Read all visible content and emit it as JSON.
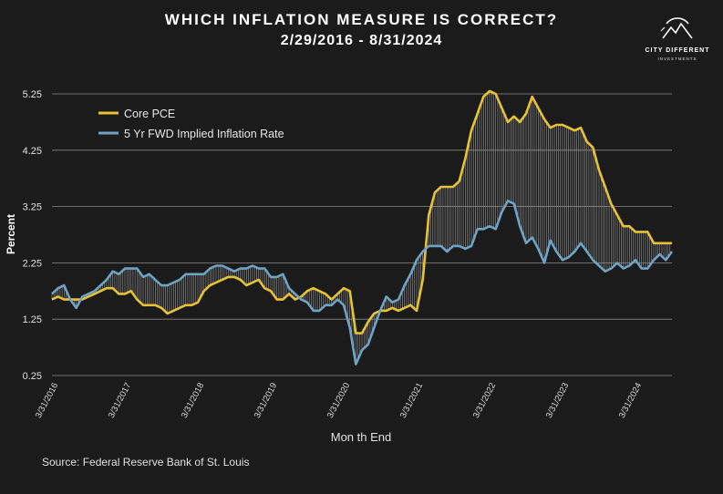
{
  "header": {
    "title": "WHICH INFLATION MEASURE IS CORRECT?",
    "subtitle": "2/29/2016 - 8/31/2024"
  },
  "logo": {
    "name": "CITY DIFFERENT",
    "tagline": "INVESTMENTS",
    "icon": "mountain-circle-logo"
  },
  "source": "Source: Federal Reserve Bank of St. Louis",
  "colors": {
    "core_pce": "#e8c232",
    "fwd": "#6fa3c6",
    "background": "#1b1b1b",
    "grid": "#8a8a8a",
    "hatch": "#9a9a9a"
  },
  "chart_data": {
    "type": "line",
    "title": "WHICH INFLATION MEASURE IS CORRECT?",
    "subtitle": "2/29/2016 - 8/31/2024",
    "xlabel": "Mon th End",
    "ylabel": "Percent",
    "ylim": [
      0.25,
      5.5
    ],
    "yticks": [
      0.25,
      1.25,
      2.25,
      3.25,
      4.25,
      5.25
    ],
    "ytick_labels": [
      "0.25",
      "1.25",
      "2.25",
      "3.25",
      "4.25",
      "5.25"
    ],
    "grid": true,
    "legend_position": "top-left",
    "x_start": "2/29/2016",
    "x_end": "8/31/2024",
    "xlim_months": [
      0,
      102
    ],
    "xticks_months": [
      1,
      13,
      25,
      37,
      49,
      61,
      73,
      85,
      97
    ],
    "xtick_labels": [
      "3/31/2016",
      "3/31/2017",
      "3/31/2018",
      "3/31/2019",
      "3/31/2020",
      "3/31/2021",
      "3/31/2022",
      "3/31/2023",
      "3/31/2024"
    ],
    "series": [
      {
        "name": "Core PCE",
        "color": "#e8c232",
        "points": [
          [
            0,
            1.6
          ],
          [
            1,
            1.65
          ],
          [
            2,
            1.6
          ],
          [
            3,
            1.6
          ],
          [
            4,
            1.6
          ],
          [
            5,
            1.6
          ],
          [
            6,
            1.65
          ],
          [
            7,
            1.7
          ],
          [
            8,
            1.75
          ],
          [
            9,
            1.8
          ],
          [
            10,
            1.8
          ],
          [
            11,
            1.7
          ],
          [
            12,
            1.7
          ],
          [
            13,
            1.75
          ],
          [
            14,
            1.6
          ],
          [
            15,
            1.5
          ],
          [
            16,
            1.5
          ],
          [
            17,
            1.5
          ],
          [
            18,
            1.45
          ],
          [
            19,
            1.35
          ],
          [
            20,
            1.4
          ],
          [
            21,
            1.45
          ],
          [
            22,
            1.5
          ],
          [
            23,
            1.5
          ],
          [
            24,
            1.55
          ],
          [
            25,
            1.75
          ],
          [
            26,
            1.85
          ],
          [
            27,
            1.9
          ],
          [
            28,
            1.95
          ],
          [
            29,
            2.0
          ],
          [
            30,
            2.0
          ],
          [
            31,
            1.95
          ],
          [
            32,
            1.85
          ],
          [
            33,
            1.9
          ],
          [
            34,
            1.95
          ],
          [
            35,
            1.8
          ],
          [
            36,
            1.75
          ],
          [
            37,
            1.6
          ],
          [
            38,
            1.6
          ],
          [
            39,
            1.7
          ],
          [
            40,
            1.6
          ],
          [
            41,
            1.65
          ],
          [
            42,
            1.75
          ],
          [
            43,
            1.8
          ],
          [
            44,
            1.75
          ],
          [
            45,
            1.7
          ],
          [
            46,
            1.6
          ],
          [
            47,
            1.7
          ],
          [
            48,
            1.8
          ],
          [
            49,
            1.75
          ],
          [
            50,
            1.0
          ],
          [
            51,
            1.0
          ],
          [
            52,
            1.2
          ],
          [
            53,
            1.35
          ],
          [
            54,
            1.4
          ],
          [
            55,
            1.4
          ],
          [
            56,
            1.45
          ],
          [
            57,
            1.4
          ],
          [
            58,
            1.45
          ],
          [
            59,
            1.5
          ],
          [
            60,
            1.4
          ],
          [
            61,
            1.95
          ],
          [
            62,
            3.1
          ],
          [
            63,
            3.5
          ],
          [
            64,
            3.6
          ],
          [
            65,
            3.6
          ],
          [
            66,
            3.6
          ],
          [
            67,
            3.7
          ],
          [
            68,
            4.1
          ],
          [
            69,
            4.6
          ],
          [
            70,
            4.9
          ],
          [
            71,
            5.2
          ],
          [
            72,
            5.3
          ],
          [
            73,
            5.25
          ],
          [
            74,
            5.0
          ],
          [
            75,
            4.75
          ],
          [
            76,
            4.85
          ],
          [
            77,
            4.75
          ],
          [
            78,
            4.9
          ],
          [
            79,
            5.2
          ],
          [
            80,
            5.0
          ],
          [
            81,
            4.8
          ],
          [
            82,
            4.65
          ],
          [
            83,
            4.7
          ],
          [
            84,
            4.7
          ],
          [
            85,
            4.65
          ],
          [
            86,
            4.6
          ],
          [
            87,
            4.65
          ],
          [
            88,
            4.4
          ],
          [
            89,
            4.3
          ],
          [
            90,
            3.9
          ],
          [
            91,
            3.6
          ],
          [
            92,
            3.3
          ],
          [
            93,
            3.1
          ],
          [
            94,
            2.9
          ],
          [
            95,
            2.9
          ],
          [
            96,
            2.8
          ],
          [
            97,
            2.8
          ],
          [
            98,
            2.8
          ],
          [
            99,
            2.6
          ],
          [
            100,
            2.6
          ],
          [
            101,
            2.6
          ],
          [
            102,
            2.6
          ]
        ]
      },
      {
        "name": "5 Yr FWD Implied Inflation Rate",
        "color": "#6fa3c6",
        "points": [
          [
            0,
            1.7
          ],
          [
            1,
            1.8
          ],
          [
            2,
            1.85
          ],
          [
            3,
            1.6
          ],
          [
            4,
            1.45
          ],
          [
            5,
            1.65
          ],
          [
            6,
            1.7
          ],
          [
            7,
            1.75
          ],
          [
            8,
            1.85
          ],
          [
            9,
            1.95
          ],
          [
            10,
            2.1
          ],
          [
            11,
            2.05
          ],
          [
            12,
            2.15
          ],
          [
            13,
            2.15
          ],
          [
            14,
            2.15
          ],
          [
            15,
            2.0
          ],
          [
            16,
            2.05
          ],
          [
            17,
            1.95
          ],
          [
            18,
            1.85
          ],
          [
            19,
            1.85
          ],
          [
            20,
            1.9
          ],
          [
            21,
            1.95
          ],
          [
            22,
            2.05
          ],
          [
            23,
            2.05
          ],
          [
            24,
            2.05
          ],
          [
            25,
            2.05
          ],
          [
            26,
            2.15
          ],
          [
            27,
            2.2
          ],
          [
            28,
            2.2
          ],
          [
            29,
            2.15
          ],
          [
            30,
            2.1
          ],
          [
            31,
            2.15
          ],
          [
            32,
            2.15
          ],
          [
            33,
            2.2
          ],
          [
            34,
            2.15
          ],
          [
            35,
            2.15
          ],
          [
            36,
            2.0
          ],
          [
            37,
            2.0
          ],
          [
            38,
            2.05
          ],
          [
            39,
            1.8
          ],
          [
            40,
            1.7
          ],
          [
            41,
            1.6
          ],
          [
            42,
            1.55
          ],
          [
            43,
            1.4
          ],
          [
            44,
            1.4
          ],
          [
            45,
            1.5
          ],
          [
            46,
            1.5
          ],
          [
            47,
            1.6
          ],
          [
            48,
            1.5
          ],
          [
            49,
            1.1
          ],
          [
            50,
            0.45
          ],
          [
            51,
            0.7
          ],
          [
            52,
            0.8
          ],
          [
            53,
            1.1
          ],
          [
            54,
            1.4
          ],
          [
            55,
            1.65
          ],
          [
            56,
            1.55
          ],
          [
            57,
            1.6
          ],
          [
            58,
            1.85
          ],
          [
            59,
            2.05
          ],
          [
            60,
            2.3
          ],
          [
            61,
            2.45
          ],
          [
            62,
            2.55
          ],
          [
            63,
            2.55
          ],
          [
            64,
            2.55
          ],
          [
            65,
            2.45
          ],
          [
            66,
            2.55
          ],
          [
            67,
            2.55
          ],
          [
            68,
            2.5
          ],
          [
            69,
            2.55
          ],
          [
            70,
            2.85
          ],
          [
            71,
            2.85
          ],
          [
            72,
            2.9
          ],
          [
            73,
            2.85
          ],
          [
            74,
            3.15
          ],
          [
            75,
            3.35
          ],
          [
            76,
            3.3
          ],
          [
            77,
            2.9
          ],
          [
            78,
            2.6
          ],
          [
            79,
            2.7
          ],
          [
            80,
            2.5
          ],
          [
            81,
            2.25
          ],
          [
            82,
            2.65
          ],
          [
            83,
            2.45
          ],
          [
            84,
            2.3
          ],
          [
            85,
            2.35
          ],
          [
            86,
            2.45
          ],
          [
            87,
            2.6
          ],
          [
            88,
            2.45
          ],
          [
            89,
            2.3
          ],
          [
            90,
            2.2
          ],
          [
            91,
            2.1
          ],
          [
            92,
            2.15
          ],
          [
            93,
            2.25
          ],
          [
            94,
            2.15
          ],
          [
            95,
            2.2
          ],
          [
            96,
            2.3
          ],
          [
            97,
            2.15
          ],
          [
            98,
            2.15
          ],
          [
            99,
            2.3
          ],
          [
            100,
            2.4
          ],
          [
            101,
            2.3
          ],
          [
            102,
            2.45
          ]
        ]
      }
    ]
  }
}
